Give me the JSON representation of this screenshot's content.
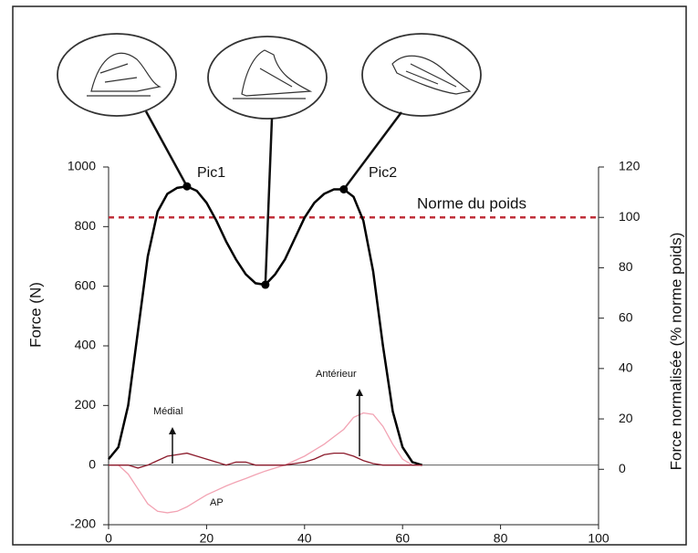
{
  "chart_data": {
    "type": "line",
    "y_label": "Force (N)",
    "y2_label": "Force normalisée (% norme poids)",
    "x": [
      0,
      2,
      4,
      6,
      8,
      10,
      12,
      14,
      16,
      18,
      20,
      22,
      24,
      26,
      28,
      30,
      32,
      34,
      36,
      38,
      40,
      42,
      44,
      46,
      48,
      50,
      52,
      54,
      56,
      58,
      60,
      62,
      64
    ],
    "series": [
      {
        "color": "#000000",
        "values": [
          20,
          60,
          200,
          450,
          700,
          850,
          910,
          930,
          935,
          920,
          880,
          820,
          750,
          690,
          640,
          610,
          605,
          640,
          690,
          760,
          830,
          880,
          910,
          925,
          925,
          900,
          820,
          650,
          400,
          180,
          60,
          10,
          0
        ]
      },
      {
        "color": "#f2a3b3",
        "values": [
          0,
          0,
          -30,
          -80,
          -130,
          -155,
          -160,
          -155,
          -140,
          -120,
          -100,
          -85,
          -70,
          -57,
          -45,
          -32,
          -20,
          -10,
          0,
          15,
          30,
          50,
          70,
          95,
          120,
          160,
          175,
          170,
          130,
          70,
          20,
          0,
          0
        ]
      },
      {
        "color": "#8b1a2b",
        "values": [
          0,
          0,
          0,
          -10,
          0,
          15,
          30,
          35,
          40,
          30,
          20,
          10,
          0,
          10,
          10,
          0,
          0,
          0,
          0,
          5,
          10,
          20,
          35,
          40,
          40,
          30,
          15,
          5,
          0,
          0,
          0,
          0,
          0
        ]
      }
    ],
    "annotations": [
      "Pic1",
      "Pic2",
      "Médial",
      "Antérieur",
      "AP"
    ],
    "reference": {
      "label": "Norme du poids",
      "value": 100,
      "axis": "y2",
      "color": "#c0303a"
    },
    "xlim": [
      0,
      100
    ],
    "xticks": [
      0,
      20,
      40,
      60,
      80,
      100
    ],
    "ylim": [
      -200,
      1000
    ],
    "yticks": [
      -200,
      0,
      200,
      400,
      600,
      800,
      1000
    ],
    "y2lim": [
      -22,
      120
    ],
    "y2ticks": [
      0,
      20,
      40,
      60,
      80,
      100,
      120
    ]
  }
}
